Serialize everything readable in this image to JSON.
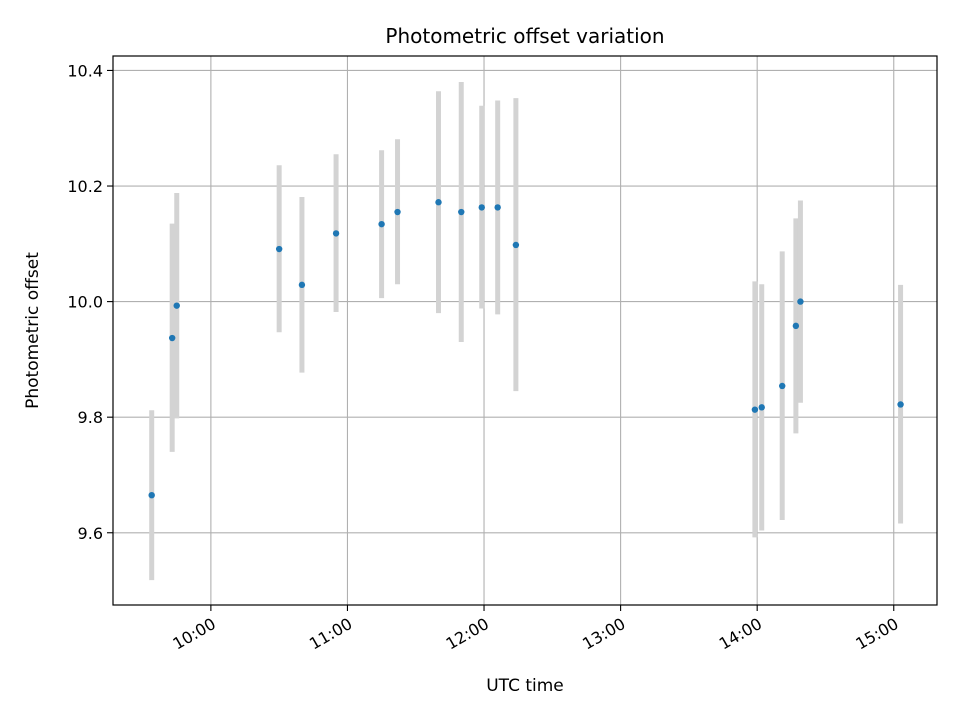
{
  "chart_data": {
    "type": "scatter",
    "title": "Photometric offset variation",
    "xlabel": "UTC time",
    "ylabel": "Photometric offset",
    "x_axis_type": "time",
    "xlim": [
      "09:17",
      "15:19"
    ],
    "ylim": [
      9.475,
      10.425
    ],
    "x_ticks": [
      "10:00",
      "11:00",
      "12:00",
      "13:00",
      "14:00",
      "15:00"
    ],
    "y_ticks": [
      9.6,
      9.8,
      10.0,
      10.2,
      10.4
    ],
    "y_tick_labels": [
      "9.6",
      "9.8",
      "10.0",
      "10.2",
      "10.4"
    ],
    "grid": true,
    "marker_color": "#1f77b4",
    "errorbar_color": "#d3d3d3",
    "points": [
      {
        "t": "09:34",
        "y": 9.665,
        "ylo": 9.518,
        "yhi": 9.812
      },
      {
        "t": "09:43",
        "y": 9.937,
        "ylo": 9.74,
        "yhi": 10.135
      },
      {
        "t": "09:45",
        "y": 9.993,
        "ylo": 9.798,
        "yhi": 10.188
      },
      {
        "t": "10:30",
        "y": 10.091,
        "ylo": 9.947,
        "yhi": 10.236
      },
      {
        "t": "10:40",
        "y": 10.029,
        "ylo": 9.877,
        "yhi": 10.181
      },
      {
        "t": "10:55",
        "y": 10.118,
        "ylo": 9.982,
        "yhi": 10.255
      },
      {
        "t": "11:15",
        "y": 10.134,
        "ylo": 10.006,
        "yhi": 10.262
      },
      {
        "t": "11:22",
        "y": 10.155,
        "ylo": 10.03,
        "yhi": 10.281
      },
      {
        "t": "11:40",
        "y": 10.172,
        "ylo": 9.98,
        "yhi": 10.364
      },
      {
        "t": "11:50",
        "y": 10.155,
        "ylo": 9.93,
        "yhi": 10.38
      },
      {
        "t": "11:59",
        "y": 10.163,
        "ylo": 9.988,
        "yhi": 10.339
      },
      {
        "t": "12:06",
        "y": 10.163,
        "ylo": 9.978,
        "yhi": 10.348
      },
      {
        "t": "12:14",
        "y": 10.098,
        "ylo": 9.845,
        "yhi": 10.352
      },
      {
        "t": "13:59",
        "y": 9.813,
        "ylo": 9.592,
        "yhi": 10.035
      },
      {
        "t": "14:02",
        "y": 9.817,
        "ylo": 9.604,
        "yhi": 10.03
      },
      {
        "t": "14:11",
        "y": 9.854,
        "ylo": 9.622,
        "yhi": 10.087
      },
      {
        "t": "14:17",
        "y": 9.958,
        "ylo": 9.772,
        "yhi": 10.144
      },
      {
        "t": "14:19",
        "y": 10.0,
        "ylo": 9.825,
        "yhi": 10.175
      },
      {
        "t": "15:03",
        "y": 9.822,
        "ylo": 9.616,
        "yhi": 10.029
      }
    ]
  }
}
